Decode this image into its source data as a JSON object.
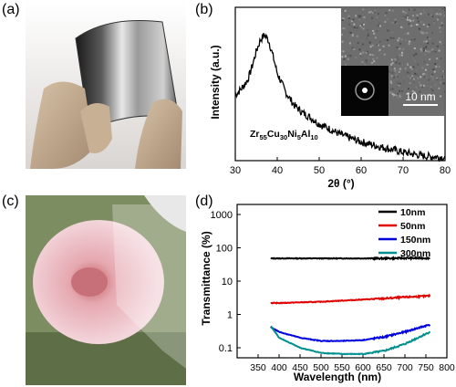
{
  "panels": {
    "a": "(a)",
    "b": "(b)",
    "c": "(c)",
    "d": "(d)"
  },
  "chart_data": [
    {
      "type": "line",
      "panel": "(b)",
      "xlabel": "2θ (°)",
      "ylabel": "Intensity (a.u.)",
      "xlim": [
        30,
        80
      ],
      "x_ticks": [
        30,
        40,
        50,
        60,
        70,
        80
      ],
      "annotation": {
        "base": [
          "Zr",
          "Cu",
          "Ni",
          "Al"
        ],
        "subs": [
          "55",
          "30",
          "5",
          "10"
        ]
      },
      "inset_scale_label": "10 nm",
      "series": [
        {
          "x": [
            30,
            31,
            32,
            33,
            34,
            35,
            36,
            37,
            38,
            39,
            40,
            42,
            44,
            46,
            48,
            50,
            52,
            55,
            60,
            65,
            70,
            75,
            80
          ],
          "y": [
            0.53,
            0.56,
            0.6,
            0.65,
            0.75,
            0.87,
            0.96,
            1.0,
            0.95,
            0.83,
            0.7,
            0.55,
            0.45,
            0.39,
            0.35,
            0.3,
            0.27,
            0.22,
            0.16,
            0.12,
            0.08,
            0.05,
            0.04
          ]
        }
      ]
    },
    {
      "type": "line",
      "panel": "(d)",
      "xlabel": "Wavelength (nm)",
      "ylabel": "Transmittance (%)",
      "xlim": [
        300,
        800
      ],
      "ylim": [
        0.05,
        2000
      ],
      "yscale": "log",
      "x_ticks": [
        350,
        400,
        450,
        500,
        550,
        600,
        650,
        700,
        750,
        800
      ],
      "y_ticks": [
        0.1,
        1,
        10,
        100,
        1000
      ],
      "y_tick_labels": [
        "0.1",
        "1",
        "10",
        "100",
        "1000"
      ],
      "legend_position": "top-right",
      "series": [
        {
          "name": "10nm",
          "color": "#000000",
          "x": [
            380,
            400,
            450,
            500,
            550,
            600,
            650,
            700,
            760
          ],
          "y": [
            48,
            48,
            48,
            48,
            48,
            48,
            48,
            49,
            49
          ]
        },
        {
          "name": "50nm",
          "color": "#e00000",
          "x": [
            380,
            400,
            450,
            500,
            550,
            600,
            650,
            700,
            760
          ],
          "y": [
            2.2,
            2.2,
            2.3,
            2.4,
            2.6,
            2.8,
            3.0,
            3.3,
            3.6
          ]
        },
        {
          "name": "150nm",
          "color": "#0000dd",
          "x": [
            380,
            400,
            450,
            500,
            550,
            600,
            650,
            700,
            760
          ],
          "y": [
            0.42,
            0.3,
            0.2,
            0.16,
            0.16,
            0.17,
            0.21,
            0.3,
            0.5
          ]
        },
        {
          "name": "300nm",
          "color": "#009090",
          "x": [
            380,
            400,
            450,
            500,
            550,
            600,
            650,
            700,
            760
          ],
          "y": [
            0.45,
            0.2,
            0.1,
            0.07,
            0.065,
            0.065,
            0.08,
            0.13,
            0.3
          ]
        }
      ]
    }
  ]
}
